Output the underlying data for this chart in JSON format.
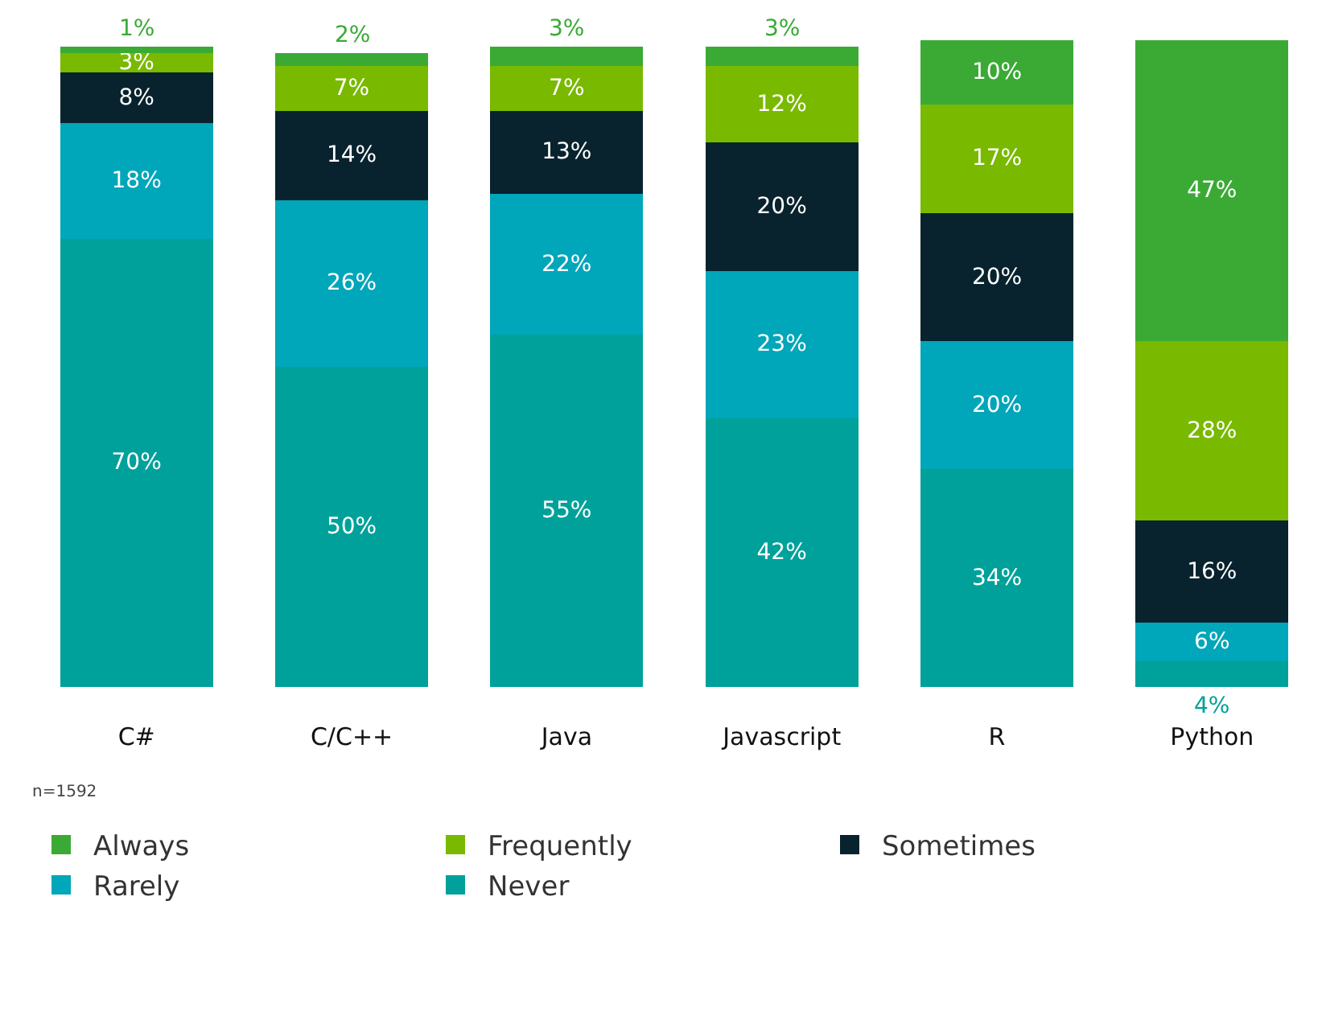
{
  "chart_data": {
    "type": "bar",
    "stacked": true,
    "categories": [
      "C#",
      "C/C++",
      "Java",
      "Javascript",
      "R",
      "Python"
    ],
    "series": [
      {
        "name": "Never",
        "color": "#00a19a",
        "values": [
          70,
          50,
          55,
          42,
          34,
          4
        ],
        "value_labels": [
          "70%",
          "50%",
          "55%",
          "42%",
          "34%",
          "4%"
        ]
      },
      {
        "name": "Rarely",
        "color": "#00a6b9",
        "values": [
          18,
          26,
          22,
          23,
          20,
          6
        ],
        "value_labels": [
          "18%",
          "26%",
          "22%",
          "23%",
          "20%",
          "6%"
        ]
      },
      {
        "name": "Sometimes",
        "color": "#08232e",
        "values": [
          8,
          14,
          13,
          20,
          20,
          16
        ],
        "value_labels": [
          "8%",
          "14%",
          "13%",
          "20%",
          "20%",
          "16%"
        ]
      },
      {
        "name": "Frequently",
        "color": "#79b900",
        "values": [
          3,
          7,
          7,
          12,
          17,
          28
        ],
        "value_labels": [
          "3%",
          "7%",
          "7%",
          "12%",
          "17%",
          "28%"
        ]
      },
      {
        "name": "Always",
        "color": "#3aaa35",
        "values": [
          1,
          2,
          3,
          3,
          10,
          47
        ],
        "value_labels": [
          "1%",
          "2%",
          "3%",
          "3%",
          "10%",
          "47%"
        ]
      }
    ],
    "ylim": [
      0,
      101
    ],
    "tick_labels": "x",
    "grid": false,
    "legend": "bottom left",
    "annotations": [
      "n=1592"
    ]
  }
}
